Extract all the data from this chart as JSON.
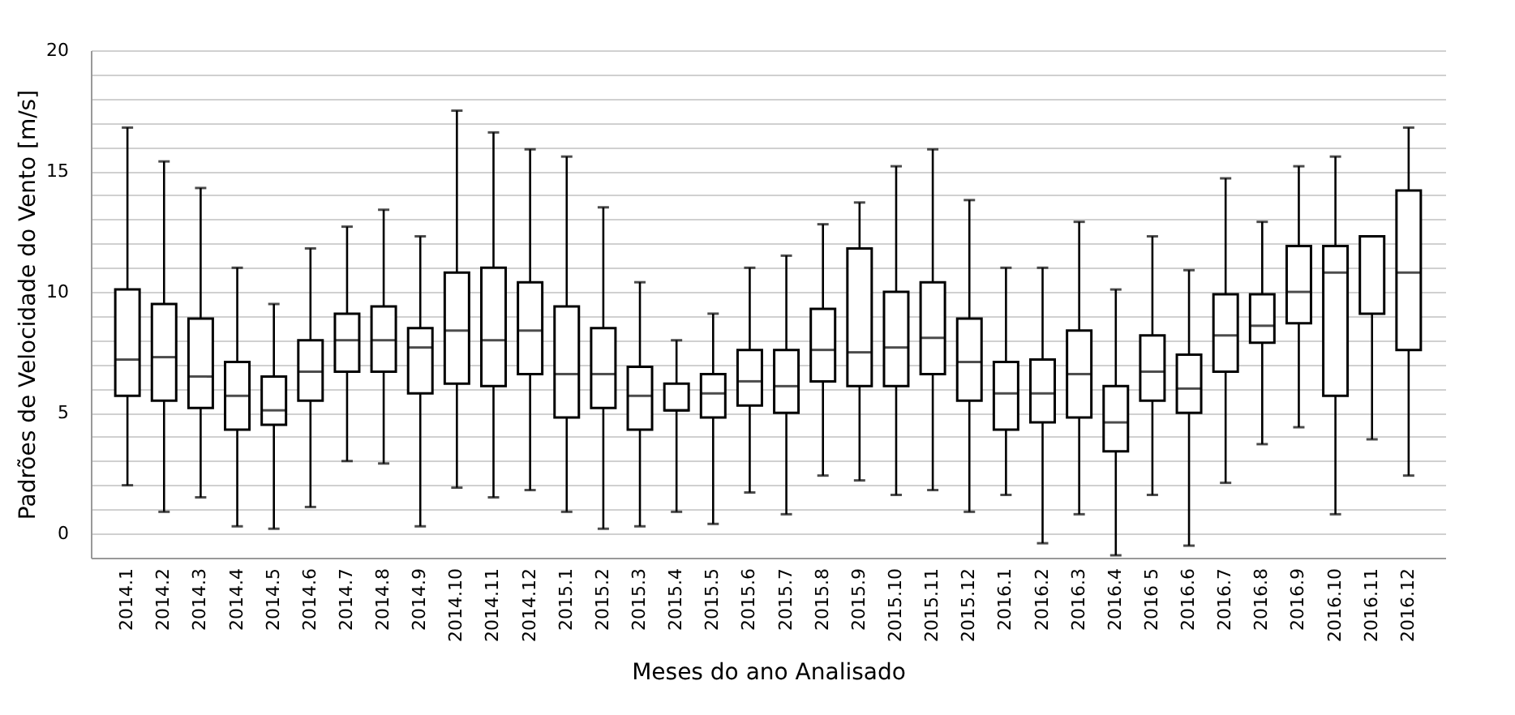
{
  "chart_data": {
    "type": "box",
    "xlabel": "Meses do ano Analisado",
    "ylabel": "Padrões de Velocidade do Vento [m/s]",
    "categories": [
      "2014.1",
      "2014.2",
      "2014.3",
      "2014.4",
      "2014.5",
      "2014.6",
      "2014.7",
      "2014.8",
      "2014.9",
      "2014.10",
      "2014.11",
      "2014.12",
      "2015.1",
      "2015.2",
      "2015.3",
      "2015.4",
      "2015.5",
      "2015.6",
      "2015.7",
      "2015.8",
      "2015.9",
      "2015.10",
      "2015.11",
      "2015.12",
      "2016.1",
      "2016.2",
      "2016.3",
      "2016.4",
      "2016 5",
      "2016.6",
      "2016.7",
      "2016.8",
      "2016.9",
      "2016.10",
      "2016.11",
      "2016.12"
    ],
    "boxes": [
      {
        "low": 2.0,
        "q1": 5.7,
        "median": 7.2,
        "q3": 10.1,
        "high": 16.8
      },
      {
        "low": 0.9,
        "q1": 5.5,
        "median": 7.3,
        "q3": 9.5,
        "high": 15.4
      },
      {
        "low": 1.5,
        "q1": 5.2,
        "median": 6.5,
        "q3": 8.9,
        "high": 14.3
      },
      {
        "low": 0.3,
        "q1": 4.3,
        "median": 5.7,
        "q3": 7.1,
        "high": 11.0
      },
      {
        "low": 0.2,
        "q1": 4.5,
        "median": 5.1,
        "q3": 6.5,
        "high": 9.5
      },
      {
        "low": 1.1,
        "q1": 5.5,
        "median": 6.7,
        "q3": 8.0,
        "high": 11.8
      },
      {
        "low": 3.0,
        "q1": 6.7,
        "median": 8.0,
        "q3": 9.1,
        "high": 12.7
      },
      {
        "low": 2.9,
        "q1": 6.7,
        "median": 8.0,
        "q3": 9.4,
        "high": 13.4
      },
      {
        "low": 0.3,
        "q1": 5.8,
        "median": 7.7,
        "q3": 8.5,
        "high": 12.3
      },
      {
        "low": 1.9,
        "q1": 6.2,
        "median": 8.4,
        "q3": 10.8,
        "high": 17.5
      },
      {
        "low": 1.5,
        "q1": 6.1,
        "median": 8.0,
        "q3": 11.0,
        "high": 16.6
      },
      {
        "low": 1.8,
        "q1": 6.6,
        "median": 8.4,
        "q3": 10.4,
        "high": 15.9
      },
      {
        "low": 0.9,
        "q1": 4.8,
        "median": 6.6,
        "q3": 9.4,
        "high": 15.6
      },
      {
        "low": 0.2,
        "q1": 5.2,
        "median": 6.6,
        "q3": 8.5,
        "high": 13.5
      },
      {
        "low": 0.3,
        "q1": 4.3,
        "median": 5.7,
        "q3": 6.9,
        "high": 10.4
      },
      {
        "low": 0.9,
        "q1": 5.1,
        "median": 5.1,
        "q3": 6.2,
        "high": 8.0
      },
      {
        "low": 0.4,
        "q1": 4.8,
        "median": 5.8,
        "q3": 6.6,
        "high": 9.1
      },
      {
        "low": 1.7,
        "q1": 5.3,
        "median": 6.3,
        "q3": 7.6,
        "high": 11.0
      },
      {
        "low": 0.8,
        "q1": 5.0,
        "median": 6.1,
        "q3": 7.6,
        "high": 11.5
      },
      {
        "low": 2.4,
        "q1": 6.3,
        "median": 7.6,
        "q3": 9.3,
        "high": 12.8
      },
      {
        "low": 2.2,
        "q1": 6.1,
        "median": 7.5,
        "q3": 11.8,
        "high": 13.7
      },
      {
        "low": 1.6,
        "q1": 6.1,
        "median": 7.7,
        "q3": 10.0,
        "high": 15.2
      },
      {
        "low": 1.8,
        "q1": 6.6,
        "median": 8.1,
        "q3": 10.4,
        "high": 15.9
      },
      {
        "low": 0.9,
        "q1": 5.5,
        "median": 7.1,
        "q3": 8.9,
        "high": 13.8
      },
      {
        "low": 1.6,
        "q1": 4.3,
        "median": 5.8,
        "q3": 7.1,
        "high": 11.0
      },
      {
        "low": -0.4,
        "q1": 4.6,
        "median": 5.8,
        "q3": 7.2,
        "high": 11.0
      },
      {
        "low": 0.8,
        "q1": 4.8,
        "median": 6.6,
        "q3": 8.4,
        "high": 12.9
      },
      {
        "low": -0.9,
        "q1": 3.4,
        "median": 4.6,
        "q3": 6.1,
        "high": 10.1
      },
      {
        "low": 1.6,
        "q1": 5.5,
        "median": 6.7,
        "q3": 8.2,
        "high": 12.3
      },
      {
        "low": -0.5,
        "q1": 5.0,
        "median": 6.0,
        "q3": 7.4,
        "high": 10.9
      },
      {
        "low": 2.1,
        "q1": 6.7,
        "median": 8.2,
        "q3": 9.9,
        "high": 14.7
      },
      {
        "low": 3.7,
        "q1": 7.9,
        "median": 8.6,
        "q3": 9.9,
        "high": 12.9
      },
      {
        "low": 4.4,
        "q1": 8.7,
        "median": 10.0,
        "q3": 11.9,
        "high": 15.2
      },
      {
        "low": 0.8,
        "q1": 5.7,
        "median": 10.8,
        "q3": 11.9,
        "high": 15.6
      },
      {
        "low": 3.9,
        "q1": 9.1,
        "median": 12.3,
        "q3": 12.3,
        "high": 12.3
      },
      {
        "low": 2.4,
        "q1": 7.6,
        "median": 10.8,
        "q3": 14.2,
        "high": 16.8
      }
    ],
    "ylim": [
      -1,
      20
    ],
    "yticks": [
      {
        "value": -1,
        "label": null
      },
      0,
      {
        "value": 1,
        "label": null
      },
      {
        "value": 2,
        "label": null
      },
      {
        "value": 3,
        "label": null
      },
      {
        "value": 4,
        "label": null
      },
      5,
      {
        "value": 6,
        "label": null
      },
      {
        "value": 7,
        "label": null
      },
      {
        "value": 8,
        "label": null
      },
      {
        "value": 9,
        "label": null
      },
      10,
      {
        "value": 11,
        "label": null
      },
      {
        "value": 12,
        "label": null
      },
      {
        "value": 13,
        "label": null
      },
      {
        "value": 14,
        "label": null
      },
      15,
      {
        "value": 16,
        "label": null
      },
      {
        "value": 17,
        "label": null
      },
      {
        "value": 18,
        "label": null
      },
      {
        "value": 19,
        "label": null
      },
      20
    ],
    "grid": "y"
  }
}
